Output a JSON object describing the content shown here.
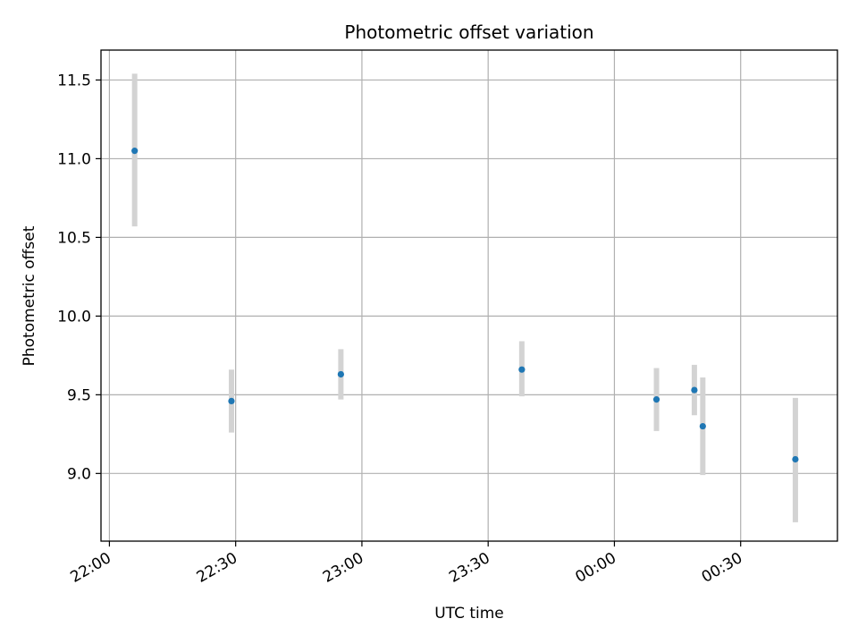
{
  "chart_data": {
    "type": "scatter",
    "title": "Photometric offset variation",
    "xlabel": "UTC time",
    "ylabel": "Photometric offset",
    "x_format": "HH:MM",
    "xlim": [
      "21:58",
      "00:53"
    ],
    "ylim": [
      8.57,
      11.69
    ],
    "x_ticks": [
      "22:00",
      "22:30",
      "23:00",
      "23:30",
      "00:00",
      "00:30"
    ],
    "y_ticks": [
      9.0,
      9.5,
      10.0,
      10.5,
      11.0,
      11.5
    ],
    "y_tick_labels": [
      "9.0",
      "9.5",
      "10.0",
      "10.5",
      "11.0",
      "11.5"
    ],
    "grid": true,
    "colors": {
      "point": "#1f77b4",
      "errorbar": "#d3d3d3",
      "grid": "#b0b0b0"
    },
    "points": [
      {
        "x": "22:06",
        "y": 11.05,
        "yerr_low": 10.57,
        "yerr_high": 11.54
      },
      {
        "x": "22:29",
        "y": 9.46,
        "yerr_low": 9.26,
        "yerr_high": 9.66
      },
      {
        "x": "22:55",
        "y": 9.63,
        "yerr_low": 9.47,
        "yerr_high": 9.79
      },
      {
        "x": "23:38",
        "y": 9.66,
        "yerr_low": 9.49,
        "yerr_high": 9.84
      },
      {
        "x": "00:10",
        "y": 9.47,
        "yerr_low": 9.27,
        "yerr_high": 9.67
      },
      {
        "x": "00:19",
        "y": 9.53,
        "yerr_low": 9.37,
        "yerr_high": 9.69
      },
      {
        "x": "00:21",
        "y": 9.3,
        "yerr_low": 8.99,
        "yerr_high": 9.61
      },
      {
        "x": "00:43",
        "y": 9.09,
        "yerr_low": 8.69,
        "yerr_high": 9.48
      }
    ]
  }
}
